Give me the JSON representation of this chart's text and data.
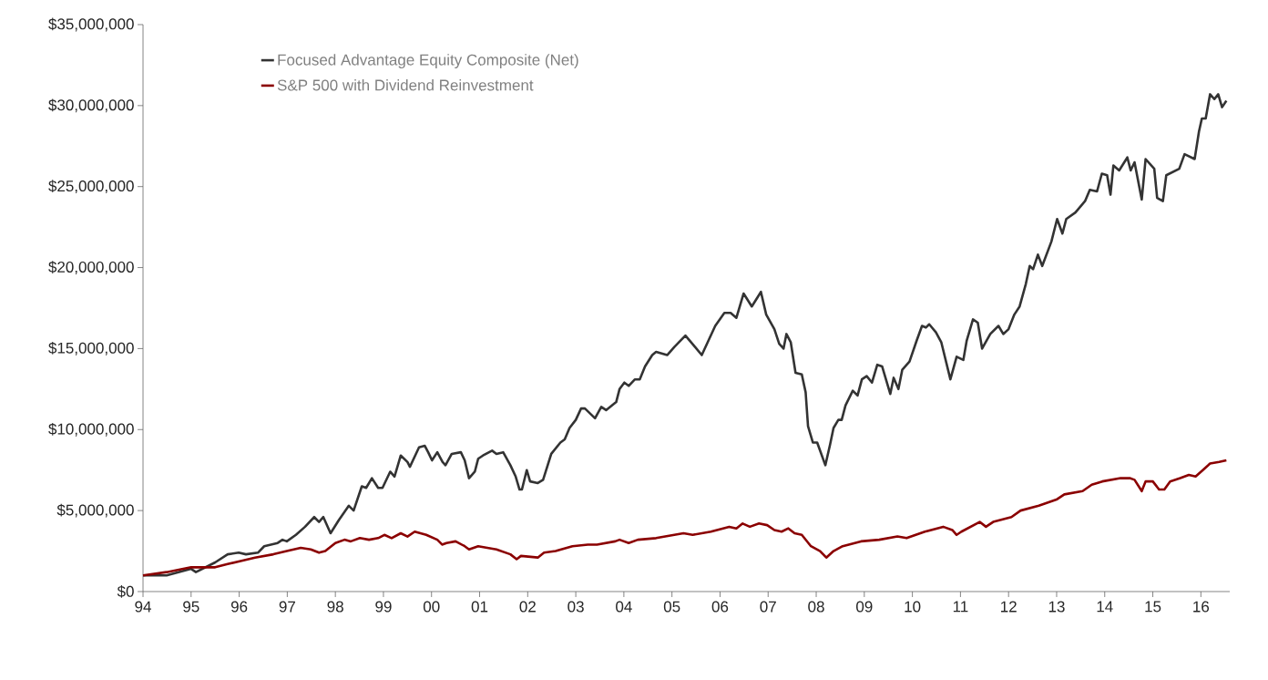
{
  "chart_data": {
    "type": "line",
    "legend": "top left",
    "line_style": "solid",
    "xlim": [
      1994,
      2016.6
    ],
    "ylim": [
      0,
      35000000
    ],
    "xticks": [
      {
        "value": 1994,
        "label": "94"
      },
      {
        "value": 1995,
        "label": "95"
      },
      {
        "value": 1996,
        "label": "96"
      },
      {
        "value": 1997,
        "label": "97"
      },
      {
        "value": 1998,
        "label": "98"
      },
      {
        "value": 1999,
        "label": "99"
      },
      {
        "value": 2000,
        "label": "00"
      },
      {
        "value": 2001,
        "label": "01"
      },
      {
        "value": 2002,
        "label": "02"
      },
      {
        "value": 2003,
        "label": "03"
      },
      {
        "value": 2004,
        "label": "04"
      },
      {
        "value": 2005,
        "label": "05"
      },
      {
        "value": 2006,
        "label": "06"
      },
      {
        "value": 2007,
        "label": "07"
      },
      {
        "value": 2008,
        "label": "08"
      },
      {
        "value": 2009,
        "label": "09"
      },
      {
        "value": 2010,
        "label": "10"
      },
      {
        "value": 2011,
        "label": "11"
      },
      {
        "value": 2012,
        "label": "12"
      },
      {
        "value": 2013,
        "label": "13"
      },
      {
        "value": 2014,
        "label": "14"
      },
      {
        "value": 2015,
        "label": "15"
      },
      {
        "value": 2016,
        "label": "16"
      }
    ],
    "yticks": [
      {
        "value": 0,
        "label": "$0"
      },
      {
        "value": 5000000,
        "label": "$5,000,000"
      },
      {
        "value": 10000000,
        "label": "$10,000,000"
      },
      {
        "value": 15000000,
        "label": "$15,000,000"
      },
      {
        "value": 20000000,
        "label": "$20,000,000"
      },
      {
        "value": 25000000,
        "label": "$25,000,000"
      },
      {
        "value": 30000000,
        "label": "$30,000,000"
      },
      {
        "value": 35000000,
        "label": "$35,000,000"
      }
    ],
    "series": [
      {
        "name": "Focused Advantage Equity Composite (Net)",
        "color": "#333333",
        "x": [
          1994.0,
          1994.49,
          1995.0,
          1995.1,
          1995.5,
          1995.76,
          1995.99,
          1996.14,
          1996.39,
          1996.52,
          1996.8,
          1996.9,
          1996.99,
          1997.18,
          1997.37,
          1997.56,
          1997.66,
          1997.75,
          1997.9,
          1998.07,
          1998.28,
          1998.38,
          1998.55,
          1998.64,
          1998.76,
          1998.89,
          1998.98,
          1999.14,
          1999.23,
          1999.36,
          1999.5,
          1999.55,
          1999.74,
          1999.86,
          1999.93,
          2000.01,
          2000.12,
          2000.23,
          2000.29,
          2000.42,
          2000.61,
          2000.69,
          2000.78,
          2000.9,
          2000.97,
          2001.07,
          2001.26,
          2001.35,
          2001.49,
          2001.64,
          2001.75,
          2001.83,
          2001.88,
          2001.98,
          2002.05,
          2002.21,
          2002.32,
          2002.49,
          2002.68,
          2002.77,
          2002.87,
          2003.0,
          2003.11,
          2003.19,
          2003.4,
          2003.53,
          2003.63,
          2003.84,
          2003.91,
          2004.01,
          2004.1,
          2004.23,
          2004.33,
          2004.44,
          2004.59,
          2004.67,
          2004.9,
          2005.05,
          2005.28,
          2005.48,
          2005.62,
          2005.9,
          2006.09,
          2006.22,
          2006.34,
          2006.49,
          2006.66,
          2006.85,
          2006.96,
          2007.13,
          2007.23,
          2007.32,
          2007.38,
          2007.47,
          2007.57,
          2007.7,
          2007.78,
          2007.83,
          2007.93,
          2008.02,
          2008.19,
          2008.29,
          2008.36,
          2008.46,
          2008.53,
          2008.61,
          2008.76,
          2008.86,
          2008.95,
          2009.05,
          2009.16,
          2009.27,
          2009.37,
          2009.54,
          2009.61,
          2009.71,
          2009.79,
          2009.94,
          2010.09,
          2010.2,
          2010.28,
          2010.35,
          2010.49,
          2010.6,
          2010.79,
          2010.92,
          2011.06,
          2011.13,
          2011.26,
          2011.36,
          2011.45,
          2011.62,
          2011.79,
          2011.89,
          2012.0,
          2012.12,
          2012.23,
          2012.36,
          2012.44,
          2012.51,
          2012.61,
          2012.7,
          2012.89,
          2013.01,
          2013.12,
          2013.2,
          2013.39,
          2013.59,
          2013.69,
          2013.84,
          2013.94,
          2014.05,
          2014.12,
          2014.18,
          2014.3,
          2014.47,
          2014.54,
          2014.62,
          2014.77,
          2014.85,
          2015.03,
          2015.09,
          2015.21,
          2015.28,
          2015.55,
          2015.66,
          2015.87,
          2015.96,
          2016.02,
          2016.1,
          2016.19,
          2016.28,
          2016.36,
          2016.44,
          2016.53
        ],
        "values": [
          1000000,
          1000000,
          1400000,
          1200000,
          1800000,
          2300000,
          2400000,
          2300000,
          2400000,
          2800000,
          3000000,
          3200000,
          3100000,
          3500000,
          4000000,
          4600000,
          4300000,
          4600000,
          3600000,
          4400000,
          5300000,
          5000000,
          6500000,
          6400000,
          7000000,
          6400000,
          6400000,
          7400000,
          7100000,
          8400000,
          8000000,
          7700000,
          8900000,
          9000000,
          8600000,
          8100000,
          8600000,
          8000000,
          7800000,
          8500000,
          8600000,
          8100000,
          7000000,
          7400000,
          8200000,
          8400000,
          8700000,
          8500000,
          8600000,
          7800000,
          7100000,
          6300000,
          6300000,
          7500000,
          6800000,
          6700000,
          6900000,
          8500000,
          9200000,
          9400000,
          10100000,
          10600000,
          11300000,
          11300000,
          10700000,
          11400000,
          11200000,
          11700000,
          12500000,
          12900000,
          12700000,
          13100000,
          13100000,
          13900000,
          14600000,
          14800000,
          14600000,
          15100000,
          15800000,
          15100000,
          14600000,
          16400000,
          17200000,
          17200000,
          16900000,
          18400000,
          17600000,
          18500000,
          17100000,
          16200000,
          15300000,
          15000000,
          15900000,
          15400000,
          13500000,
          13400000,
          12300000,
          10200000,
          9200000,
          9200000,
          7800000,
          9100000,
          10100000,
          10600000,
          10600000,
          11500000,
          12400000,
          12100000,
          13100000,
          13300000,
          12900000,
          14000000,
          13900000,
          12200000,
          13200000,
          12500000,
          13700000,
          14200000,
          15500000,
          16400000,
          16300000,
          16500000,
          16000000,
          15400000,
          13100000,
          14500000,
          14300000,
          15500000,
          16800000,
          16600000,
          15000000,
          15900000,
          16400000,
          15900000,
          16200000,
          17100000,
          17600000,
          19000000,
          20100000,
          19900000,
          20800000,
          20100000,
          21600000,
          23000000,
          22100000,
          23000000,
          23400000,
          24100000,
          24800000,
          24700000,
          25800000,
          25700000,
          24500000,
          26300000,
          26000000,
          26800000,
          26000000,
          26500000,
          24200000,
          26700000,
          26100000,
          24300000,
          24100000,
          25700000,
          26100000,
          27000000,
          26700000,
          28400000,
          29200000,
          29200000,
          30700000,
          30400000,
          30700000,
          29900000,
          30300000
        ]
      },
      {
        "name": "S&P 500 with Dividend Reinvestment",
        "color": "#8b0000",
        "x": [
          1994.0,
          1994.49,
          1995.0,
          1995.5,
          1995.76,
          1996.05,
          1996.33,
          1996.71,
          1996.99,
          1997.28,
          1997.49,
          1997.66,
          1997.79,
          1998.0,
          1998.19,
          1998.32,
          1998.51,
          1998.7,
          1998.89,
          1999.02,
          1999.17,
          1999.36,
          1999.5,
          1999.65,
          1999.89,
          2000.12,
          2000.22,
          2000.31,
          2000.5,
          2000.69,
          2000.78,
          2000.97,
          2001.35,
          2001.64,
          2001.77,
          2001.86,
          2002.21,
          2002.34,
          2002.58,
          2002.93,
          2003.25,
          2003.44,
          2003.82,
          2003.91,
          2004.1,
          2004.29,
          2004.67,
          2005.05,
          2005.24,
          2005.43,
          2005.81,
          2006.19,
          2006.34,
          2006.47,
          2006.62,
          2006.81,
          2006.98,
          2007.13,
          2007.28,
          2007.42,
          2007.55,
          2007.7,
          2007.89,
          2008.08,
          2008.21,
          2008.36,
          2008.55,
          2008.93,
          2009.31,
          2009.69,
          2009.88,
          2010.26,
          2010.64,
          2010.83,
          2010.92,
          2011.02,
          2011.4,
          2011.53,
          2011.68,
          2012.06,
          2012.25,
          2012.63,
          2013.01,
          2013.16,
          2013.54,
          2013.73,
          2013.95,
          2014.33,
          2014.52,
          2014.62,
          2014.77,
          2014.85,
          2015.0,
          2015.13,
          2015.24,
          2015.36,
          2015.57,
          2015.75,
          2015.89,
          2016.04,
          2016.19,
          2016.38,
          2016.53
        ],
        "values": [
          1000000,
          1200000,
          1500000,
          1500000,
          1700000,
          1900000,
          2100000,
          2300000,
          2500000,
          2700000,
          2600000,
          2400000,
          2500000,
          3000000,
          3200000,
          3100000,
          3300000,
          3200000,
          3300000,
          3500000,
          3300000,
          3600000,
          3400000,
          3700000,
          3500000,
          3200000,
          2900000,
          3000000,
          3100000,
          2800000,
          2600000,
          2800000,
          2600000,
          2300000,
          2000000,
          2200000,
          2100000,
          2400000,
          2500000,
          2800000,
          2900000,
          2900000,
          3100000,
          3200000,
          3000000,
          3200000,
          3300000,
          3500000,
          3600000,
          3500000,
          3700000,
          4000000,
          3900000,
          4200000,
          4000000,
          4200000,
          4100000,
          3800000,
          3700000,
          3900000,
          3600000,
          3500000,
          2800000,
          2500000,
          2100000,
          2500000,
          2800000,
          3100000,
          3200000,
          3400000,
          3300000,
          3700000,
          4000000,
          3800000,
          3500000,
          3700000,
          4300000,
          4000000,
          4300000,
          4600000,
          5000000,
          5300000,
          5700000,
          6000000,
          6200000,
          6600000,
          6800000,
          7000000,
          7000000,
          6900000,
          6200000,
          6800000,
          6800000,
          6300000,
          6300000,
          6800000,
          7000000,
          7200000,
          7100000,
          7500000,
          7900000,
          8000000,
          8100000
        ]
      }
    ]
  }
}
